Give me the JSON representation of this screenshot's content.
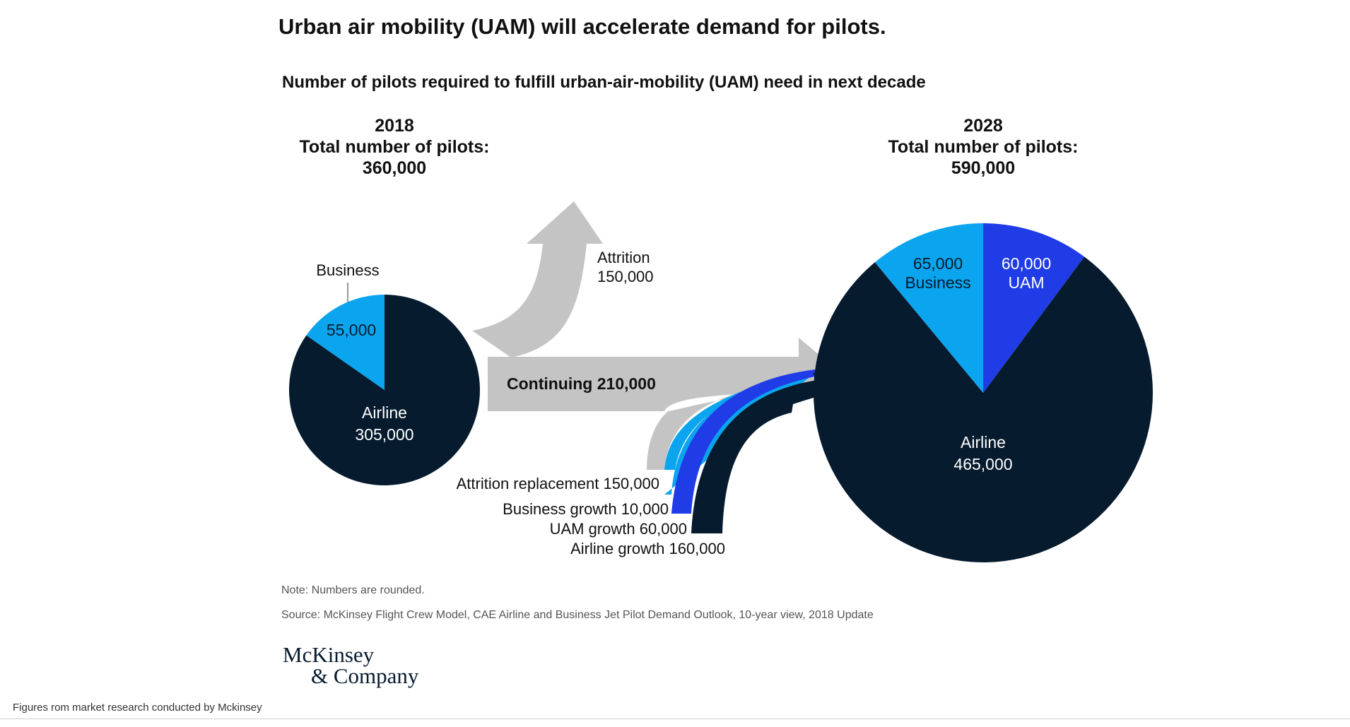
{
  "colors": {
    "airline": "#061b2e",
    "business": "#0aa5ee",
    "uam": "#1f3ce6",
    "gray": "#c4c4c4",
    "text": "#111111",
    "note": "#555555"
  },
  "header": {
    "title": "Urban air mobility (UAM) will accelerate demand for pilots.",
    "subtitle": "Number of pilots required to fulfill urban-air-mobility (UAM) need in next decade"
  },
  "chart_data": {
    "type": "pie",
    "charts": [
      {
        "year": "2018",
        "total_label": "Total number of pilots:",
        "total_value": "360,000",
        "total": 360000,
        "slices": [
          {
            "name": "Business",
            "value": 55000,
            "value_label": "55,000",
            "color": "#0aa5ee"
          },
          {
            "name": "Airline",
            "value": 305000,
            "value_label": "305,000",
            "color": "#061b2e"
          }
        ]
      },
      {
        "year": "2028",
        "total_label": "Total number of pilots:",
        "total_value": "590,000",
        "total": 590000,
        "slices": [
          {
            "name": "UAM",
            "value": 60000,
            "value_label": "60,000",
            "color": "#1f3ce6"
          },
          {
            "name": "Airline",
            "value": 465000,
            "value_label": "465,000",
            "color": "#061b2e"
          },
          {
            "name": "Business",
            "value": 65000,
            "value_label": "65,000",
            "color": "#0aa5ee"
          }
        ]
      }
    ],
    "flows": {
      "attrition": {
        "label": "Attrition",
        "value": "150,000"
      },
      "continuing": {
        "label": "Continuing 210,000"
      },
      "inflows": [
        {
          "label": "Attrition replacement 150,000",
          "color": "#c4c4c4"
        },
        {
          "label": "Business growth 10,000",
          "color": "#0aa5ee"
        },
        {
          "label": "UAM growth 60,000",
          "color": "#1f3ce6"
        },
        {
          "label": "Airline growth 160,000",
          "color": "#061b2e"
        }
      ]
    }
  },
  "notes": {
    "note": "Note: Numbers are rounded.",
    "source": "Source: McKinsey Flight Crew Model, CAE  Airline and Business Jet Pilot Demand Outlook, 10-year view, 2018 Update"
  },
  "logo": {
    "line1": "McKinsey",
    "line2": "& Company"
  },
  "footer": "Figures rom market research conducted by Mckinsey"
}
